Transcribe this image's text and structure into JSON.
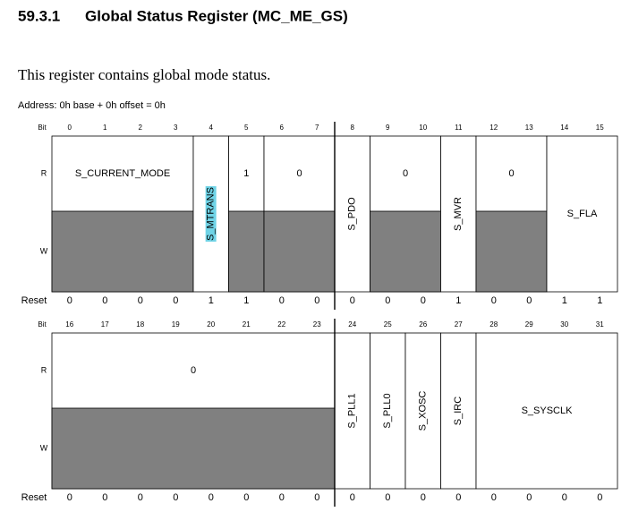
{
  "header": {
    "number": "59.3.1",
    "title": "Global Status Register (MC_ME_GS)"
  },
  "description": "This register contains global mode status.",
  "address": "Address: 0h base + 0h offset = 0h",
  "registers": [
    {
      "bit_label": "Bit",
      "r_label": "R",
      "w_label": "W",
      "reset_label": "Reset",
      "bits": [
        "0",
        "1",
        "2",
        "3",
        "4",
        "5",
        "6",
        "7",
        "8",
        "9",
        "10",
        "11",
        "12",
        "13",
        "14",
        "15"
      ],
      "fields": [
        "S_CURRENT_MODE",
        "S_MTRANS",
        "1",
        "0",
        "S_PDO",
        "0",
        "S_MVR",
        "0",
        "S_FLA"
      ],
      "reset": [
        "0",
        "0",
        "0",
        "0",
        "1",
        "1",
        "0",
        "0",
        "0",
        "0",
        "0",
        "1",
        "0",
        "0",
        "1",
        "1"
      ]
    },
    {
      "bit_label": "Bit",
      "r_label": "R",
      "w_label": "W",
      "reset_label": "Reset",
      "bits": [
        "16",
        "17",
        "18",
        "19",
        "20",
        "21",
        "22",
        "23",
        "24",
        "25",
        "26",
        "27",
        "28",
        "29",
        "30",
        "31"
      ],
      "fields": [
        "0",
        "S_PLL1",
        "S_PLL0",
        "S_XOSC",
        "S_IRC",
        "S_SYSCLK"
      ],
      "reset": [
        "0",
        "0",
        "0",
        "0",
        "0",
        "0",
        "0",
        "0",
        "0",
        "0",
        "0",
        "0",
        "0",
        "0",
        "0",
        "0"
      ]
    }
  ]
}
